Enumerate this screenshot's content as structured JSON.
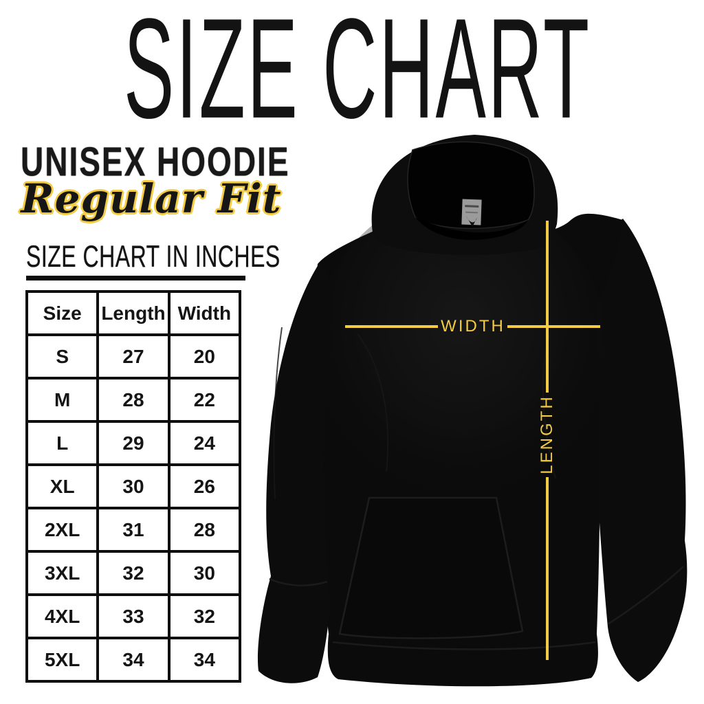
{
  "page": {
    "background": "#FFFFFF"
  },
  "header": {
    "title": "SIZE CHART"
  },
  "product": {
    "name": "UNISEX HOODIE",
    "fit": "Regular Fit"
  },
  "size_table": {
    "heading": "SIZE CHART IN INCHES",
    "unit": "inches",
    "columns": [
      "Size",
      "Length",
      "Width"
    ],
    "rows": [
      {
        "size": "S",
        "length": "27",
        "width": "20"
      },
      {
        "size": "M",
        "length": "28",
        "width": "22"
      },
      {
        "size": "L",
        "length": "29",
        "width": "24"
      },
      {
        "size": "XL",
        "length": "30",
        "width": "26"
      },
      {
        "size": "2XL",
        "length": "31",
        "width": "28"
      },
      {
        "size": "3XL",
        "length": "32",
        "width": "30"
      },
      {
        "size": "4XL",
        "length": "33",
        "width": "32"
      },
      {
        "size": "5XL",
        "length": "34",
        "width": "34"
      }
    ]
  },
  "measurement_diagram": {
    "width_label": "WIDTH",
    "length_label": "LENGTH"
  },
  "colors": {
    "accent_yellow": "#F3CC44",
    "ink": "#111111",
    "hoodie_black": "#0B0B0B",
    "tag_gray": "#9B9B9B",
    "background": "#FFFFFF"
  }
}
